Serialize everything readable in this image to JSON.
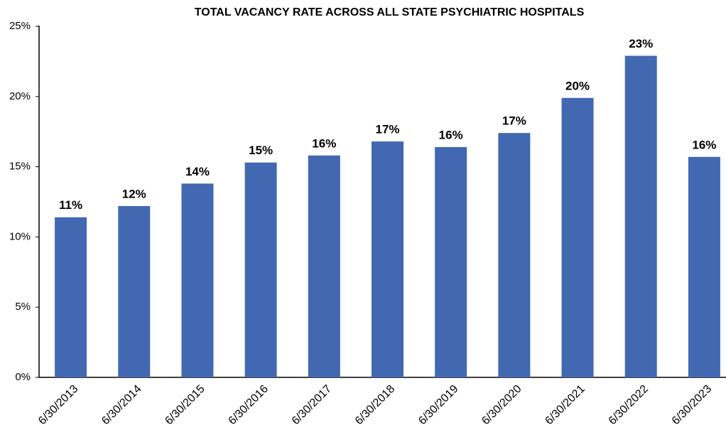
{
  "chart_data": {
    "type": "bar",
    "title": "TOTAL VACANCY RATE ACROSS ALL STATE PSYCHIATRIC HOSPITALS",
    "categories": [
      "6/30/2013",
      "6/30/2014",
      "6/30/2015",
      "6/30/2016",
      "6/30/2017",
      "6/30/2018",
      "6/30/2019",
      "6/30/2020",
      "6/30/2021",
      "6/30/2022",
      "6/30/2023"
    ],
    "values": [
      11.4,
      12.2,
      13.8,
      15.3,
      15.8,
      16.8,
      16.4,
      17.4,
      19.9,
      22.9,
      15.7
    ],
    "value_labels": [
      "11%",
      "12%",
      "14%",
      "15%",
      "16%",
      "17%",
      "16%",
      "17%",
      "20%",
      "23%",
      "16%"
    ],
    "color": "#4268b1",
    "ylim": [
      0,
      25
    ],
    "yticks": [
      {
        "value": 0,
        "label": "0%"
      },
      {
        "value": 5,
        "label": "5%"
      },
      {
        "value": 10,
        "label": "10%"
      },
      {
        "value": 15,
        "label": "15%"
      },
      {
        "value": 20,
        "label": "20%"
      },
      {
        "value": 25,
        "label": "25%"
      }
    ],
    "grid": false
  }
}
